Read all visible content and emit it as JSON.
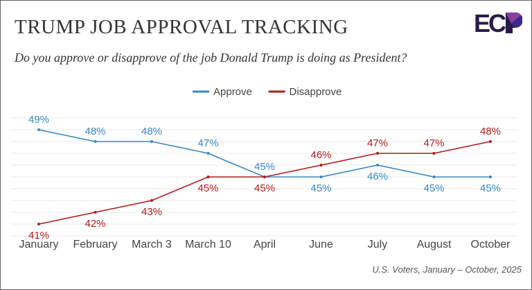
{
  "title": "TRUMP JOB APPROVAL TRACKING",
  "subtitle": "Do you approve or disapprove of the job Donald Trump is doing as President?",
  "footnote": "U.S. Voters, January – October, 2025",
  "logo_text": "ECP",
  "chart_data": {
    "type": "line",
    "categories": [
      "January",
      "February",
      "March 3",
      "March 10",
      "April",
      "June",
      "July",
      "August",
      "October"
    ],
    "series": [
      {
        "name": "Approve",
        "color": "#3a87c4",
        "values": [
          49,
          48,
          48,
          47,
          45,
          45,
          46,
          45,
          45
        ]
      },
      {
        "name": "Disapprove",
        "color": "#b01c1c",
        "values": [
          41,
          42,
          43,
          45,
          45,
          46,
          47,
          47,
          48
        ]
      }
    ],
    "ylim": [
      40,
      50
    ],
    "grid": true,
    "legend": "top-center"
  }
}
